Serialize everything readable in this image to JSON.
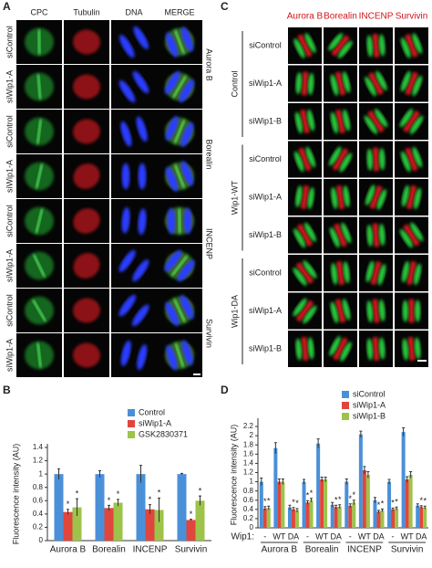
{
  "panels": {
    "A": {
      "letter": "A",
      "columns": [
        "CPC",
        "Tubulin",
        "DNA",
        "MERGE"
      ],
      "rows": [
        "siControl",
        "siWip1-A",
        "siControl",
        "siWip1-A",
        "siControl",
        "siWip1-A",
        "siControl",
        "siWip1-A"
      ],
      "proteins": [
        "Aurora B",
        "Borealin",
        "INCENP",
        "Survivin"
      ]
    },
    "C": {
      "letter": "C",
      "columns": [
        "Aurora B",
        "Borealin",
        "INCENP",
        "Survivin"
      ],
      "groups": [
        "Control",
        "Wip1-WT",
        "Wip1-DA"
      ],
      "rows": [
        "siControl",
        "siWip1-A",
        "siWip1-B"
      ]
    }
  },
  "chart_data": [
    {
      "type": "bar",
      "letter": "B",
      "y_label": "Fluorescence intensity (AU)",
      "categories": [
        "Aurora B",
        "Borealin",
        "INCENP",
        "Survivin"
      ],
      "ylim": [
        0,
        1.4
      ],
      "yticks": [
        0,
        0.2,
        0.4,
        0.6,
        0.8,
        1,
        1.2,
        1.4
      ],
      "significance_marker": "*",
      "series": [
        {
          "name": "Control",
          "color": "#4a90d9",
          "values": [
            1,
            1,
            1,
            1
          ],
          "errors": [
            0.08,
            0.05,
            0.13,
            0.01
          ],
          "significant": [
            false,
            false,
            false,
            false
          ]
        },
        {
          "name": "siWip1-A",
          "color": "#e0463c",
          "values": [
            0.43,
            0.49,
            0.47,
            0.31
          ],
          "errors": [
            0.04,
            0.04,
            0.07,
            0.01
          ],
          "significant": [
            true,
            true,
            true,
            true
          ]
        },
        {
          "name": "GSK2830371",
          "color": "#9dc34a",
          "values": [
            0.5,
            0.57,
            0.46,
            0.6
          ],
          "errors": [
            0.13,
            0.05,
            0.18,
            0.07
          ],
          "significant": [
            true,
            true,
            true,
            true
          ]
        }
      ]
    },
    {
      "type": "bar",
      "letter": "D",
      "y_label": "Fluorescence intensity (AU)",
      "x_prefix": "Wip1:",
      "categories": [
        "-",
        "WT",
        "DA",
        "-",
        "WT",
        "DA",
        "-",
        "WT",
        "DA",
        "-",
        "WT",
        "DA"
      ],
      "groups": [
        "Aurora B",
        "Borealin",
        "INCENP",
        "Survivin"
      ],
      "ylim": [
        0,
        2.3
      ],
      "yticks": [
        0,
        0.2,
        0.4,
        0.6,
        0.8,
        1,
        1.2,
        1.4,
        1.6,
        1.8,
        2,
        2.2
      ],
      "significance_marker": "*",
      "series": [
        {
          "name": "siControl",
          "color": "#4a90d9",
          "values": [
            1,
            1.73,
            0.44,
            1,
            1.83,
            0.5,
            1,
            2.03,
            0.6,
            1,
            2.08,
            0.48
          ],
          "errors": [
            0.08,
            0.12,
            0.05,
            0.05,
            0.1,
            0.05,
            0.06,
            0.07,
            0.06,
            0.05,
            0.09,
            0.04
          ],
          "significant": [
            false,
            false,
            false,
            false,
            false,
            false,
            false,
            false,
            false,
            false,
            false,
            false
          ]
        },
        {
          "name": "siWip1-A",
          "color": "#e0463c",
          "values": [
            0.42,
            1,
            0.4,
            0.55,
            1.05,
            0.45,
            0.48,
            1.25,
            0.35,
            0.4,
            1.05,
            0.45
          ],
          "errors": [
            0.04,
            0.06,
            0.04,
            0.04,
            0.05,
            0.04,
            0.04,
            0.08,
            0.03,
            0.03,
            0.06,
            0.03
          ],
          "significant": [
            true,
            false,
            true,
            true,
            false,
            true,
            true,
            false,
            true,
            true,
            false,
            true
          ]
        },
        {
          "name": "siWip1-B",
          "color": "#9dc34a",
          "values": [
            0.43,
            1,
            0.38,
            0.6,
            1.05,
            0.46,
            0.55,
            1.15,
            0.38,
            0.42,
            1.15,
            0.44
          ],
          "errors": [
            0.04,
            0.06,
            0.04,
            0.04,
            0.05,
            0.04,
            0.05,
            0.07,
            0.03,
            0.03,
            0.07,
            0.03
          ],
          "significant": [
            true,
            false,
            true,
            true,
            false,
            true,
            true,
            false,
            true,
            true,
            false,
            true
          ]
        }
      ]
    }
  ]
}
